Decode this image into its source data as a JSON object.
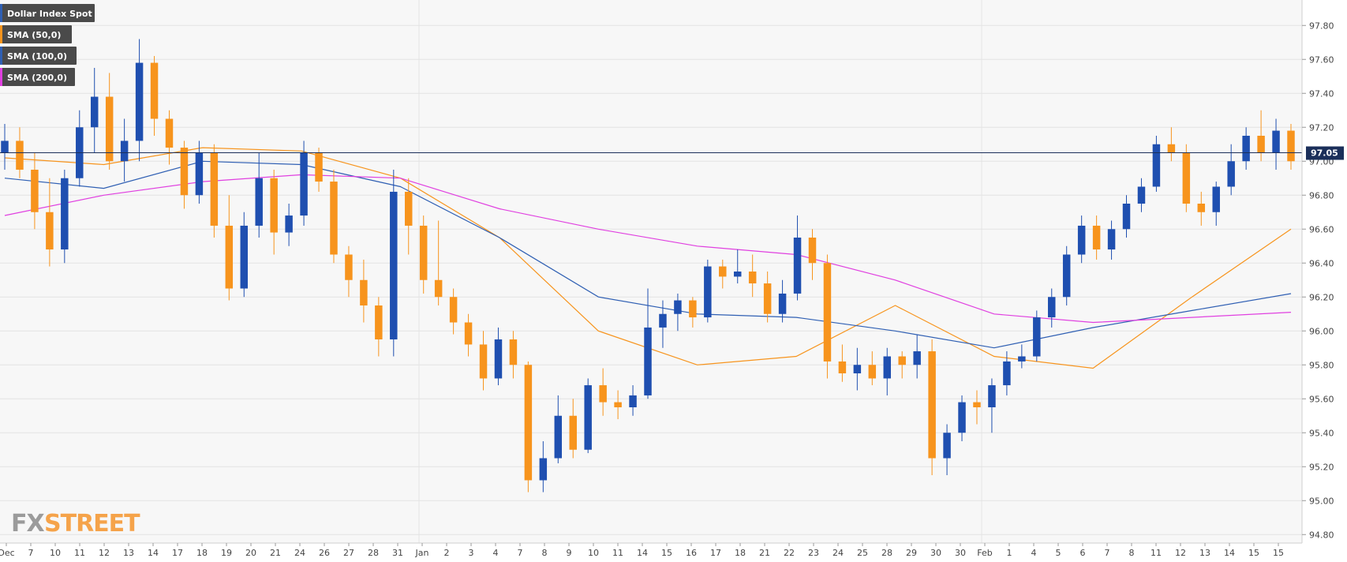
{
  "legend": [
    {
      "label": "Dollar Index Spot",
      "color": "#2f5fb3"
    },
    {
      "label": "SMA (50,0)",
      "color": "#f7941d"
    },
    {
      "label": "SMA (100,0)",
      "color": "#2f5fb3"
    },
    {
      "label": "SMA (200,0)",
      "color": "#e040e0"
    }
  ],
  "logo": {
    "part1": "FX",
    "part2": "STREET"
  },
  "current_price": {
    "label": "97.05",
    "value": 97.05
  },
  "colors": {
    "up": "#1f4fb0",
    "down": "#f7941d",
    "sma50": "#f7941d",
    "sma100": "#2f5fb3",
    "sma200": "#e040e0",
    "grid": "#e4e4e4",
    "plot_bg": "#f7f7f7",
    "price_line": "#1b2f5a",
    "legend_bg": "#4a4a4a",
    "logo_gray": "#9b9b9b",
    "logo_orange": "#f5a34a"
  },
  "chart_data": {
    "type": "candlestick",
    "title": "Dollar Index Spot",
    "ylim": [
      94.75,
      97.95
    ],
    "y_ticks": [
      "94.80",
      "95.00",
      "95.20",
      "95.40",
      "95.60",
      "95.80",
      "96.00",
      "96.20",
      "96.40",
      "96.60",
      "96.80",
      "97.00",
      "97.20",
      "97.40",
      "97.60",
      "97.80"
    ],
    "x_tick_labels": [
      "Dec",
      "7",
      "10",
      "11",
      "12",
      "13",
      "14",
      "17",
      "18",
      "19",
      "20",
      "21",
      "24",
      "26",
      "27",
      "28",
      "31",
      "Jan",
      "2",
      "3",
      "4",
      "7",
      "8",
      "9",
      "10",
      "11",
      "14",
      "15",
      "16",
      "17",
      "18",
      "21",
      "22",
      "23",
      "24",
      "25",
      "28",
      "29",
      "30",
      "30",
      "Feb",
      "1",
      "4",
      "5",
      "6",
      "7",
      "8",
      "11",
      "12",
      "13",
      "14",
      "15",
      "15"
    ],
    "month_separators": [
      "Jan",
      "Feb"
    ],
    "grid": true,
    "sma_series": [
      {
        "name": "SMA (50,0)",
        "x": [
          0,
          4,
          8,
          12,
          16,
          20,
          24,
          28,
          32,
          36,
          40,
          44,
          48,
          52
        ],
        "y": [
          97.02,
          96.98,
          97.08,
          97.06,
          96.9,
          96.55,
          96.0,
          95.8,
          95.85,
          96.15,
          95.85,
          95.78,
          96.2,
          96.6
        ]
      },
      {
        "name": "SMA (100,0)",
        "x": [
          0,
          4,
          8,
          12,
          16,
          20,
          24,
          28,
          32,
          36,
          40,
          44,
          48,
          52
        ],
        "y": [
          96.9,
          96.84,
          97.0,
          96.98,
          96.85,
          96.55,
          96.2,
          96.1,
          96.08,
          96.0,
          95.9,
          96.02,
          96.12,
          96.22
        ]
      },
      {
        "name": "SMA (200,0)",
        "x": [
          0,
          4,
          8,
          12,
          16,
          20,
          24,
          28,
          32,
          36,
          40,
          44,
          48,
          52
        ],
        "y": [
          96.68,
          96.8,
          96.88,
          96.92,
          96.9,
          96.72,
          96.6,
          96.5,
          96.45,
          96.3,
          96.1,
          96.05,
          96.08,
          96.11
        ]
      }
    ],
    "candles": [
      {
        "o": 97.05,
        "h": 97.22,
        "l": 96.95,
        "c": 97.12
      },
      {
        "o": 97.12,
        "h": 97.2,
        "l": 96.9,
        "c": 96.95
      },
      {
        "o": 96.95,
        "h": 97.05,
        "l": 96.6,
        "c": 96.7
      },
      {
        "o": 96.7,
        "h": 96.9,
        "l": 96.38,
        "c": 96.48
      },
      {
        "o": 96.48,
        "h": 96.95,
        "l": 96.4,
        "c": 96.9
      },
      {
        "o": 96.9,
        "h": 97.3,
        "l": 96.85,
        "c": 97.2
      },
      {
        "o": 97.2,
        "h": 97.55,
        "l": 97.05,
        "c": 97.38
      },
      {
        "o": 97.38,
        "h": 97.52,
        "l": 96.95,
        "c": 97.0
      },
      {
        "o": 97.0,
        "h": 97.25,
        "l": 96.88,
        "c": 97.12
      },
      {
        "o": 97.12,
        "h": 97.72,
        "l": 97.0,
        "c": 97.58
      },
      {
        "o": 97.58,
        "h": 97.62,
        "l": 97.15,
        "c": 97.25
      },
      {
        "o": 97.25,
        "h": 97.3,
        "l": 96.98,
        "c": 97.08
      },
      {
        "o": 97.08,
        "h": 97.12,
        "l": 96.72,
        "c": 96.8
      },
      {
        "o": 96.8,
        "h": 97.12,
        "l": 96.75,
        "c": 97.05
      },
      {
        "o": 97.05,
        "h": 97.1,
        "l": 96.55,
        "c": 96.62
      },
      {
        "o": 96.62,
        "h": 96.8,
        "l": 96.18,
        "c": 96.25
      },
      {
        "o": 96.25,
        "h": 96.7,
        "l": 96.2,
        "c": 96.62
      },
      {
        "o": 96.62,
        "h": 97.05,
        "l": 96.55,
        "c": 96.9
      },
      {
        "o": 96.9,
        "h": 96.95,
        "l": 96.45,
        "c": 96.58
      },
      {
        "o": 96.58,
        "h": 96.75,
        "l": 96.5,
        "c": 96.68
      },
      {
        "o": 96.68,
        "h": 97.12,
        "l": 96.62,
        "c": 97.05
      },
      {
        "o": 97.05,
        "h": 97.08,
        "l": 96.82,
        "c": 96.88
      },
      {
        "o": 96.88,
        "h": 96.95,
        "l": 96.4,
        "c": 96.45
      },
      {
        "o": 96.45,
        "h": 96.5,
        "l": 96.2,
        "c": 96.3
      },
      {
        "o": 96.3,
        "h": 96.42,
        "l": 96.05,
        "c": 96.15
      },
      {
        "o": 96.15,
        "h": 96.2,
        "l": 95.85,
        "c": 95.95
      },
      {
        "o": 95.95,
        "h": 96.95,
        "l": 95.85,
        "c": 96.82
      },
      {
        "o": 96.82,
        "h": 96.9,
        "l": 96.45,
        "c": 96.62
      },
      {
        "o": 96.62,
        "h": 96.68,
        "l": 96.22,
        "c": 96.3
      },
      {
        "o": 96.3,
        "h": 96.65,
        "l": 96.15,
        "c": 96.2
      },
      {
        "o": 96.2,
        "h": 96.25,
        "l": 95.98,
        "c": 96.05
      },
      {
        "o": 96.05,
        "h": 96.1,
        "l": 95.85,
        "c": 95.92
      },
      {
        "o": 95.92,
        "h": 96.0,
        "l": 95.65,
        "c": 95.72
      },
      {
        "o": 95.72,
        "h": 96.02,
        "l": 95.68,
        "c": 95.95
      },
      {
        "o": 95.95,
        "h": 96.0,
        "l": 95.72,
        "c": 95.8
      },
      {
        "o": 95.8,
        "h": 95.82,
        "l": 95.05,
        "c": 95.12
      },
      {
        "o": 95.12,
        "h": 95.35,
        "l": 95.05,
        "c": 95.25
      },
      {
        "o": 95.25,
        "h": 95.62,
        "l": 95.22,
        "c": 95.5
      },
      {
        "o": 95.5,
        "h": 95.6,
        "l": 95.25,
        "c": 95.3
      },
      {
        "o": 95.3,
        "h": 95.72,
        "l": 95.28,
        "c": 95.68
      },
      {
        "o": 95.68,
        "h": 95.78,
        "l": 95.5,
        "c": 95.58
      },
      {
        "o": 95.58,
        "h": 95.65,
        "l": 95.48,
        "c": 95.55
      },
      {
        "o": 95.55,
        "h": 95.68,
        "l": 95.5,
        "c": 95.62
      },
      {
        "o": 95.62,
        "h": 96.25,
        "l": 95.6,
        "c": 96.02
      },
      {
        "o": 96.02,
        "h": 96.18,
        "l": 95.9,
        "c": 96.1
      },
      {
        "o": 96.1,
        "h": 96.22,
        "l": 96.0,
        "c": 96.18
      },
      {
        "o": 96.18,
        "h": 96.2,
        "l": 96.02,
        "c": 96.08
      },
      {
        "o": 96.08,
        "h": 96.42,
        "l": 96.05,
        "c": 96.38
      },
      {
        "o": 96.38,
        "h": 96.42,
        "l": 96.25,
        "c": 96.32
      },
      {
        "o": 96.32,
        "h": 96.48,
        "l": 96.28,
        "c": 96.35
      },
      {
        "o": 96.35,
        "h": 96.45,
        "l": 96.2,
        "c": 96.28
      },
      {
        "o": 96.28,
        "h": 96.35,
        "l": 96.05,
        "c": 96.1
      },
      {
        "o": 96.1,
        "h": 96.3,
        "l": 96.05,
        "c": 96.22
      },
      {
        "o": 96.22,
        "h": 96.68,
        "l": 96.18,
        "c": 96.55
      },
      {
        "o": 96.55,
        "h": 96.6,
        "l": 96.3,
        "c": 96.4
      },
      {
        "o": 96.4,
        "h": 96.45,
        "l": 95.72,
        "c": 95.82
      },
      {
        "o": 95.82,
        "h": 95.92,
        "l": 95.7,
        "c": 95.75
      },
      {
        "o": 95.75,
        "h": 95.9,
        "l": 95.65,
        "c": 95.8
      },
      {
        "o": 95.8,
        "h": 95.88,
        "l": 95.68,
        "c": 95.72
      },
      {
        "o": 95.72,
        "h": 95.9,
        "l": 95.62,
        "c": 95.85
      },
      {
        "o": 95.85,
        "h": 95.88,
        "l": 95.72,
        "c": 95.8
      },
      {
        "o": 95.8,
        "h": 95.98,
        "l": 95.72,
        "c": 95.88
      },
      {
        "o": 95.88,
        "h": 95.95,
        "l": 95.15,
        "c": 95.25
      },
      {
        "o": 95.25,
        "h": 95.45,
        "l": 95.15,
        "c": 95.4
      },
      {
        "o": 95.4,
        "h": 95.62,
        "l": 95.35,
        "c": 95.58
      },
      {
        "o": 95.58,
        "h": 95.65,
        "l": 95.45,
        "c": 95.55
      },
      {
        "o": 95.55,
        "h": 95.72,
        "l": 95.4,
        "c": 95.68
      },
      {
        "o": 95.68,
        "h": 95.88,
        "l": 95.62,
        "c": 95.82
      },
      {
        "o": 95.82,
        "h": 95.92,
        "l": 95.78,
        "c": 95.85
      },
      {
        "o": 95.85,
        "h": 96.12,
        "l": 95.82,
        "c": 96.08
      },
      {
        "o": 96.08,
        "h": 96.25,
        "l": 96.02,
        "c": 96.2
      },
      {
        "o": 96.2,
        "h": 96.5,
        "l": 96.15,
        "c": 96.45
      },
      {
        "o": 96.45,
        "h": 96.68,
        "l": 96.4,
        "c": 96.62
      },
      {
        "o": 96.62,
        "h": 96.68,
        "l": 96.42,
        "c": 96.48
      },
      {
        "o": 96.48,
        "h": 96.65,
        "l": 96.42,
        "c": 96.6
      },
      {
        "o": 96.6,
        "h": 96.8,
        "l": 96.55,
        "c": 96.75
      },
      {
        "o": 96.75,
        "h": 96.9,
        "l": 96.7,
        "c": 96.85
      },
      {
        "o": 96.85,
        "h": 97.15,
        "l": 96.82,
        "c": 97.1
      },
      {
        "o": 97.1,
        "h": 97.2,
        "l": 97.0,
        "c": 97.05
      },
      {
        "o": 97.05,
        "h": 97.1,
        "l": 96.7,
        "c": 96.75
      },
      {
        "o": 96.75,
        "h": 96.82,
        "l": 96.62,
        "c": 96.7
      },
      {
        "o": 96.7,
        "h": 96.88,
        "l": 96.62,
        "c": 96.85
      },
      {
        "o": 96.85,
        "h": 97.1,
        "l": 96.8,
        "c": 97.0
      },
      {
        "o": 97.0,
        "h": 97.2,
        "l": 96.95,
        "c": 97.15
      },
      {
        "o": 97.15,
        "h": 97.3,
        "l": 97.0,
        "c": 97.05
      },
      {
        "o": 97.05,
        "h": 97.25,
        "l": 96.95,
        "c": 97.18
      },
      {
        "o": 97.18,
        "h": 97.22,
        "l": 96.95,
        "c": 97.0
      }
    ]
  }
}
